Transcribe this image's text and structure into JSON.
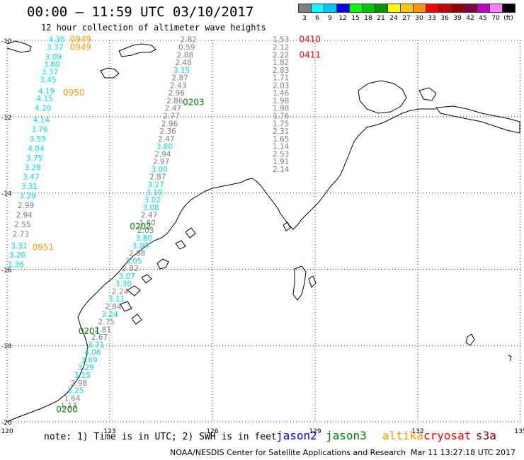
{
  "title": "00:00 – 11:59 UTC 03/10/2017",
  "subtitle": "12 hour collection of altimeter wave heights",
  "scale": {
    "unit": "(ft)",
    "bins": [
      {
        "label": "3",
        "color": "#808080"
      },
      {
        "label": "6",
        "color": "#00ffff"
      },
      {
        "label": "9",
        "color": "#00c8ff"
      },
      {
        "label": "12",
        "color": "#0000ff"
      },
      {
        "label": "15",
        "color": "#00ff00"
      },
      {
        "label": "18",
        "color": "#00c800"
      },
      {
        "label": "21",
        "color": "#009600"
      },
      {
        "label": "24",
        "color": "#ffff00"
      },
      {
        "label": "27",
        "color": "#ffc800"
      },
      {
        "label": "30",
        "color": "#ff9600"
      },
      {
        "label": "33",
        "color": "#ff0000"
      },
      {
        "label": "36",
        "color": "#c80000"
      },
      {
        "label": "39",
        "color": "#960000"
      },
      {
        "label": "42",
        "color": "#800040"
      },
      {
        "label": "45",
        "color": "#c000c0"
      },
      {
        "label": "70",
        "color": "#ff80ff"
      },
      {
        "label": "",
        "color": "#000000"
      }
    ]
  },
  "axes": {
    "lat_labels": [
      "-10",
      "-12",
      "-14",
      "-16",
      "-18",
      "-20"
    ],
    "lon_labels": [
      "120",
      "123",
      "126",
      "129",
      "132",
      "135"
    ]
  },
  "colors": {
    "low": "#808080",
    "mid": "#00dddd",
    "jason2": "#0000ff",
    "jason3": "#008000",
    "altika": "#ff9900",
    "cryosat": "#ff0000",
    "s3a": "#800000"
  },
  "tracks": [
    {
      "satellite": "altika",
      "times": [
        {
          "label": "0949",
          "lat": -10.05,
          "lon": 122.15
        },
        {
          "label": "0949",
          "lat": -10.25,
          "lon": 122.15
        },
        {
          "label": "0950",
          "lat": -11.45,
          "lon": 121.95
        },
        {
          "label": "0951",
          "lat": -15.5,
          "lon": 121.05
        }
      ],
      "points": [
        {
          "lat": -10.05,
          "lon": 121.45,
          "swh": "4.35"
        },
        {
          "lat": -10.25,
          "lon": 121.4,
          "swh": "3.37"
        },
        {
          "lat": -10.5,
          "lon": 121.35,
          "swh": "3.09"
        },
        {
          "lat": -10.7,
          "lon": 121.3,
          "swh": "3.80"
        },
        {
          "lat": -10.9,
          "lon": 121.25,
          "swh": "3.37"
        },
        {
          "lat": -11.1,
          "lon": 121.2,
          "swh": "3.45"
        },
        {
          "lat": -11.4,
          "lon": 121.15,
          "swh": "4.19"
        },
        {
          "lat": -11.6,
          "lon": 121.1,
          "swh": "4.15"
        },
        {
          "lat": -11.85,
          "lon": 121.05,
          "swh": "4.20"
        },
        {
          "lat": -12.15,
          "lon": 121.0,
          "swh": "4.14"
        },
        {
          "lat": -12.4,
          "lon": 120.95,
          "swh": "3.76"
        },
        {
          "lat": -12.65,
          "lon": 120.9,
          "swh": "3.59"
        },
        {
          "lat": -12.9,
          "lon": 120.85,
          "swh": "4.04"
        },
        {
          "lat": -13.15,
          "lon": 120.8,
          "swh": "3.75"
        },
        {
          "lat": -13.4,
          "lon": 120.75,
          "swh": "3.28"
        },
        {
          "lat": -13.65,
          "lon": 120.7,
          "swh": "3.47"
        },
        {
          "lat": -13.9,
          "lon": 120.65,
          "swh": "3.31"
        },
        {
          "lat": -14.15,
          "lon": 120.6,
          "swh": "3.29"
        },
        {
          "lat": -14.4,
          "lon": 120.55,
          "swh": "2.99"
        },
        {
          "lat": -14.65,
          "lon": 120.5,
          "swh": "2.94"
        },
        {
          "lat": -14.9,
          "lon": 120.45,
          "swh": "2.55"
        },
        {
          "lat": -15.15,
          "lon": 120.4,
          "swh": "2.73"
        },
        {
          "lat": -15.45,
          "lon": 120.35,
          "swh": "3.31"
        },
        {
          "lat": -15.7,
          "lon": 120.3,
          "swh": "3.20"
        },
        {
          "lat": -15.95,
          "lon": 120.25,
          "swh": "3.36"
        }
      ]
    },
    {
      "satellite": "jason3",
      "times": [
        {
          "label": "0203",
          "lat": -11.7,
          "lon": 125.45
        },
        {
          "label": "0202",
          "lat": -14.95,
          "lon": 123.9
        },
        {
          "label": "0201",
          "lat": -17.7,
          "lon": 122.4
        },
        {
          "label": "0200",
          "lat": -19.75,
          "lon": 121.75
        }
      ],
      "points": [
        {
          "lat": -10.05,
          "lon": 125.3,
          "swh": "2.82"
        },
        {
          "lat": -10.25,
          "lon": 125.25,
          "swh": "0.59"
        },
        {
          "lat": -10.45,
          "lon": 125.2,
          "swh": "2.88"
        },
        {
          "lat": -10.65,
          "lon": 125.15,
          "swh": "2.48"
        },
        {
          "lat": -10.85,
          "lon": 125.1,
          "swh": "3.15"
        },
        {
          "lat": -11.05,
          "lon": 125.05,
          "swh": "2.87"
        },
        {
          "lat": -11.25,
          "lon": 125.0,
          "swh": "2.43"
        },
        {
          "lat": -11.45,
          "lon": 124.95,
          "swh": "2.96"
        },
        {
          "lat": -11.65,
          "lon": 124.9,
          "swh": "2.86"
        },
        {
          "lat": -11.85,
          "lon": 124.85,
          "swh": "2.47"
        },
        {
          "lat": -12.05,
          "lon": 124.8,
          "swh": "2.77"
        },
        {
          "lat": -12.25,
          "lon": 124.75,
          "swh": "2.96"
        },
        {
          "lat": -12.45,
          "lon": 124.7,
          "swh": "2.36"
        },
        {
          "lat": -12.65,
          "lon": 124.65,
          "swh": "2.47"
        },
        {
          "lat": -12.85,
          "lon": 124.6,
          "swh": "3.80"
        },
        {
          "lat": -13.05,
          "lon": 124.55,
          "swh": "2.94"
        },
        {
          "lat": -13.25,
          "lon": 124.5,
          "swh": "2.97"
        },
        {
          "lat": -13.45,
          "lon": 124.45,
          "swh": "3.00"
        },
        {
          "lat": -13.65,
          "lon": 124.4,
          "swh": "2.87"
        },
        {
          "lat": -13.85,
          "lon": 124.35,
          "swh": "3.27"
        },
        {
          "lat": -14.05,
          "lon": 124.3,
          "swh": "3.10"
        },
        {
          "lat": -14.25,
          "lon": 124.25,
          "swh": "3.02"
        },
        {
          "lat": -14.45,
          "lon": 124.2,
          "swh": "3.08"
        },
        {
          "lat": -14.65,
          "lon": 124.15,
          "swh": "2.47"
        },
        {
          "lat": -14.85,
          "lon": 124.1,
          "swh": "1.80"
        },
        {
          "lat": -15.05,
          "lon": 124.05,
          "swh": "2.03"
        },
        {
          "lat": -15.25,
          "lon": 124.0,
          "swh": "3.80"
        },
        {
          "lat": -15.45,
          "lon": 123.9,
          "swh": "3.09"
        },
        {
          "lat": -15.65,
          "lon": 123.8,
          "swh": "2.88"
        },
        {
          "lat": -15.85,
          "lon": 123.7,
          "swh": "3.05"
        },
        {
          "lat": -16.05,
          "lon": 123.6,
          "swh": "2.82"
        },
        {
          "lat": -16.25,
          "lon": 123.5,
          "swh": "3.07"
        },
        {
          "lat": -16.45,
          "lon": 123.4,
          "swh": "3.30"
        },
        {
          "lat": -16.65,
          "lon": 123.3,
          "swh": "2.24"
        },
        {
          "lat": -16.85,
          "lon": 123.2,
          "swh": "3.11"
        },
        {
          "lat": -17.05,
          "lon": 123.1,
          "swh": "2.84"
        },
        {
          "lat": -17.25,
          "lon": 123.0,
          "swh": "3.24"
        },
        {
          "lat": -17.45,
          "lon": 122.9,
          "swh": "2.75"
        },
        {
          "lat": -17.65,
          "lon": 122.8,
          "swh": "2.81"
        },
        {
          "lat": -17.85,
          "lon": 122.7,
          "swh": "2.67"
        },
        {
          "lat": -18.05,
          "lon": 122.6,
          "swh": "3.71"
        },
        {
          "lat": -18.25,
          "lon": 122.5,
          "swh": "4.06"
        },
        {
          "lat": -18.45,
          "lon": 122.4,
          "swh": "3.69"
        },
        {
          "lat": -18.65,
          "lon": 122.3,
          "swh": "3.29"
        },
        {
          "lat": -18.85,
          "lon": 122.2,
          "swh": "3.15"
        },
        {
          "lat": -19.05,
          "lon": 122.1,
          "swh": "2.98"
        },
        {
          "lat": -19.25,
          "lon": 122.0,
          "swh": "3.25"
        },
        {
          "lat": -19.45,
          "lon": 121.9,
          "swh": "1.64"
        },
        {
          "lat": -19.65,
          "lon": 121.8,
          "swh": "1.13"
        }
      ]
    },
    {
      "satellite": "cryosat",
      "times": [
        {
          "label": "0410",
          "lat": -10.05,
          "lon": 128.85
        },
        {
          "lat": -10.45,
          "lon": 128.85,
          "label": "0411"
        }
      ],
      "points": [
        {
          "lat": -10.05,
          "lon": 128.0,
          "swh": "1.53"
        },
        {
          "lat": -10.25,
          "lon": 128.0,
          "swh": "2.12"
        },
        {
          "lat": -10.45,
          "lon": 128.0,
          "swh": "2.22"
        },
        {
          "lat": -10.65,
          "lon": 128.0,
          "swh": "1.82"
        },
        {
          "lat": -10.85,
          "lon": 128.0,
          "swh": "2.83"
        },
        {
          "lat": -11.05,
          "lon": 128.0,
          "swh": "1.71"
        },
        {
          "lat": -11.25,
          "lon": 128.0,
          "swh": "2.03"
        },
        {
          "lat": -11.45,
          "lon": 128.0,
          "swh": "1.46"
        },
        {
          "lat": -11.65,
          "lon": 128.0,
          "swh": "1.98"
        },
        {
          "lat": -11.85,
          "lon": 128.0,
          "swh": "1.98"
        },
        {
          "lat": -12.05,
          "lon": 128.0,
          "swh": "1.76"
        },
        {
          "lat": -12.25,
          "lon": 128.0,
          "swh": "1.75"
        },
        {
          "lat": -12.45,
          "lon": 128.0,
          "swh": "2.31"
        },
        {
          "lat": -12.65,
          "lon": 128.0,
          "swh": "1.65"
        },
        {
          "lat": -12.85,
          "lon": 128.0,
          "swh": "1.14"
        },
        {
          "lat": -13.05,
          "lon": 128.0,
          "swh": "2.53"
        },
        {
          "lat": -13.25,
          "lon": 128.0,
          "swh": "1.91"
        },
        {
          "lat": -13.45,
          "lon": 128.0,
          "swh": "2.14"
        }
      ]
    }
  ],
  "legend": [
    {
      "name": "jason2",
      "color": "#0000ff"
    },
    {
      "name": "jason3",
      "color": "#008000"
    },
    {
      "name": "altika",
      "color": "#ff9900"
    },
    {
      "name": "cryosat",
      "color": "#ff0000"
    },
    {
      "name": "s3a",
      "color": "#800000"
    }
  ],
  "note": "note: 1) Time is in UTC; 2) SWH is in feet",
  "credit": "NOAA/NESDIS Center for Satellite Applications and Research",
  "credit_date": "Mar 11 13:27:18 UTC 2017"
}
